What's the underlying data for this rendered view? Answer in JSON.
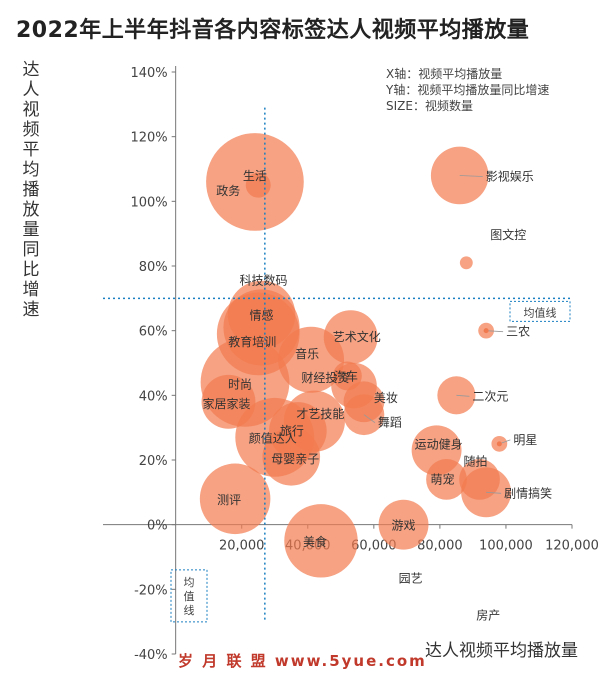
{
  "title": "2022年上半年抖音各内容标签达人视频平均播放量",
  "legend": {
    "x": "X轴：视频平均播放量",
    "y": "Y轴：视频平均播放量同比增速",
    "size": "SIZE：视频数量"
  },
  "watermark": "岁 月 联 盟  www.5yue.com",
  "avg_x_label": "均值线",
  "avg_y_label": "均值线",
  "colors": {
    "bubble": "#f27a4f",
    "axis": "#777777",
    "avgline": "#1a7fc1"
  },
  "chart_data": {
    "type": "scatter",
    "xlabel": "达人视频平均播放量",
    "ylabel": "达人视频平均播放量同比增速",
    "xlim": [
      -22000,
      120000
    ],
    "ylim": [
      -40,
      140
    ],
    "xticks": [
      20000,
      40000,
      60000,
      80000,
      100000,
      120000
    ],
    "xtick_labels": [
      "20,000",
      "40,000",
      "60,000",
      "80,000",
      "100,000",
      "120,000"
    ],
    "yticks": [
      -40,
      -20,
      0,
      20,
      40,
      60,
      80,
      100,
      120,
      140
    ],
    "ytick_labels": [
      "-40%",
      "-20%",
      "0%",
      "20%",
      "40%",
      "60%",
      "80%",
      "100%",
      "120%",
      "140%"
    ],
    "avg_x": 27000,
    "avg_y": 70,
    "points": [
      {
        "label": "生活",
        "x": 24000,
        "y": 106,
        "size": 46
      },
      {
        "label": "政务",
        "x": 25000,
        "y": 105,
        "size": 3
      },
      {
        "label": "影视娱乐",
        "x": 86000,
        "y": 108,
        "size": 16
      },
      {
        "label": "图文控",
        "x": 88000,
        "y": 81,
        "size": 0.8
      },
      {
        "label": "科技数码",
        "x": 26000,
        "y": 65,
        "size": 22
      },
      {
        "label": "情感",
        "x": 26000,
        "y": 61,
        "size": 28
      },
      {
        "label": "教育培训",
        "x": 25000,
        "y": 59,
        "size": 33
      },
      {
        "label": "三农",
        "x": 94000,
        "y": 60,
        "size": 1.2
      },
      {
        "label": "艺术文化",
        "x": 53000,
        "y": 58,
        "size": 14
      },
      {
        "label": "音乐",
        "x": 41000,
        "y": 51,
        "size": 21
      },
      {
        "label": "时尚",
        "x": 21000,
        "y": 44,
        "size": 38
      },
      {
        "label": "财经投资",
        "x": 52000,
        "y": 46,
        "size": 4
      },
      {
        "label": "汽车",
        "x": 54000,
        "y": 43,
        "size": 10
      },
      {
        "label": "美妆",
        "x": 57000,
        "y": 38,
        "size": 8
      },
      {
        "label": "二次元",
        "x": 85000,
        "y": 40,
        "size": 7
      },
      {
        "label": "家居家装",
        "x": 16000,
        "y": 38,
        "size": 14
      },
      {
        "label": "舞蹈",
        "x": 57000,
        "y": 34,
        "size": 8
      },
      {
        "label": "才艺技能",
        "x": 42000,
        "y": 32,
        "size": 18
      },
      {
        "label": "旅行",
        "x": 37000,
        "y": 29,
        "size": 16
      },
      {
        "label": "颜值达人",
        "x": 30000,
        "y": 27,
        "size": 30
      },
      {
        "label": "明星",
        "x": 98000,
        "y": 25,
        "size": 1.2
      },
      {
        "label": "运动健身",
        "x": 79000,
        "y": 23,
        "size": 12
      },
      {
        "label": "母婴亲子",
        "x": 35000,
        "y": 21,
        "size": 16
      },
      {
        "label": "随拍",
        "x": 92000,
        "y": 14,
        "size": 8
      },
      {
        "label": "萌宠",
        "x": 82000,
        "y": 14,
        "size": 8
      },
      {
        "label": "剧情搞笑",
        "x": 94000,
        "y": 10,
        "size": 12
      },
      {
        "label": "测评",
        "x": 18000,
        "y": 8,
        "size": 24
      },
      {
        "label": "美食",
        "x": 44000,
        "y": -5,
        "size": 26
      },
      {
        "label": "游戏",
        "x": 69000,
        "y": 0,
        "size": 12
      },
      {
        "label": "园艺",
        "x": 76000,
        "y": -13,
        "size": 0
      },
      {
        "label": "房产",
        "x": 88000,
        "y": -25,
        "size": 0
      }
    ]
  }
}
